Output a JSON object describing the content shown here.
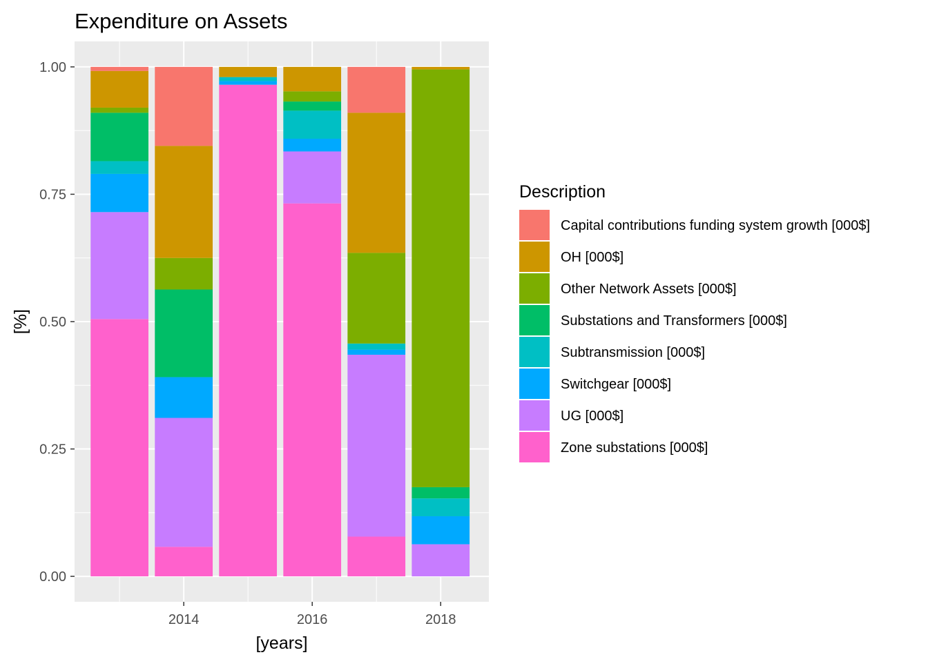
{
  "chart_data": {
    "type": "bar",
    "stacked": true,
    "position": "fill",
    "title": "Expenditure on Assets",
    "xlabel": "[years]",
    "ylabel": "[%]",
    "x": [
      2013,
      2014,
      2015,
      2016,
      2017,
      2018
    ],
    "x_ticks": [
      2014,
      2016,
      2018
    ],
    "x_tick_labels": [
      "2014",
      "2016",
      "2018"
    ],
    "xlim": [
      2012.3,
      2018.75
    ],
    "ylim": [
      -0.05,
      1.05
    ],
    "y_ticks": [
      0,
      0.25,
      0.5,
      0.75,
      1
    ],
    "y_tick_labels": [
      "0.00",
      "0.25",
      "0.50",
      "0.75",
      "1.00"
    ],
    "grid": true,
    "legend_title": "Description",
    "legend_position": "right",
    "series": [
      {
        "name": "Zone substations [000$]",
        "color": "#FF61CC",
        "values": [
          0.505,
          0.058,
          0.965,
          0.732,
          0.078,
          0.0
        ]
      },
      {
        "name": "UG [000$]",
        "color": "#C77CFF",
        "values": [
          0.21,
          0.253,
          0.0,
          0.102,
          0.357,
          0.063
        ]
      },
      {
        "name": "Switchgear [000$]",
        "color": "#00A9FF",
        "values": [
          0.075,
          0.08,
          0.007,
          0.025,
          0.01,
          0.055
        ]
      },
      {
        "name": "Subtransmission [000$]",
        "color": "#00BFC4",
        "values": [
          0.025,
          0.0,
          0.008,
          0.055,
          0.012,
          0.035
        ]
      },
      {
        "name": "Substations and Transformers [000$]",
        "color": "#00BE67",
        "values": [
          0.095,
          0.172,
          0.0,
          0.018,
          0.0,
          0.022
        ]
      },
      {
        "name": "Other Network Assets [000$]",
        "color": "#7CAE00",
        "values": [
          0.01,
          0.062,
          0.0,
          0.02,
          0.178,
          0.82
        ]
      },
      {
        "name": "OH [000$]",
        "color": "#CD9600",
        "values": [
          0.072,
          0.22,
          0.02,
          0.048,
          0.275,
          0.005
        ]
      },
      {
        "name": "Capital contributions funding system growth [000$]",
        "color": "#F8766D",
        "values": [
          0.008,
          0.155,
          0.0,
          0.0,
          0.09,
          0.0
        ]
      }
    ],
    "legend_order": [
      "Capital contributions funding system growth [000$]",
      "OH [000$]",
      "Other Network Assets [000$]",
      "Substations and Transformers [000$]",
      "Subtransmission [000$]",
      "Switchgear [000$]",
      "UG [000$]",
      "Zone substations [000$]"
    ],
    "panel_color": "#EBEBEB",
    "grid_color": "#FFFFFF"
  }
}
